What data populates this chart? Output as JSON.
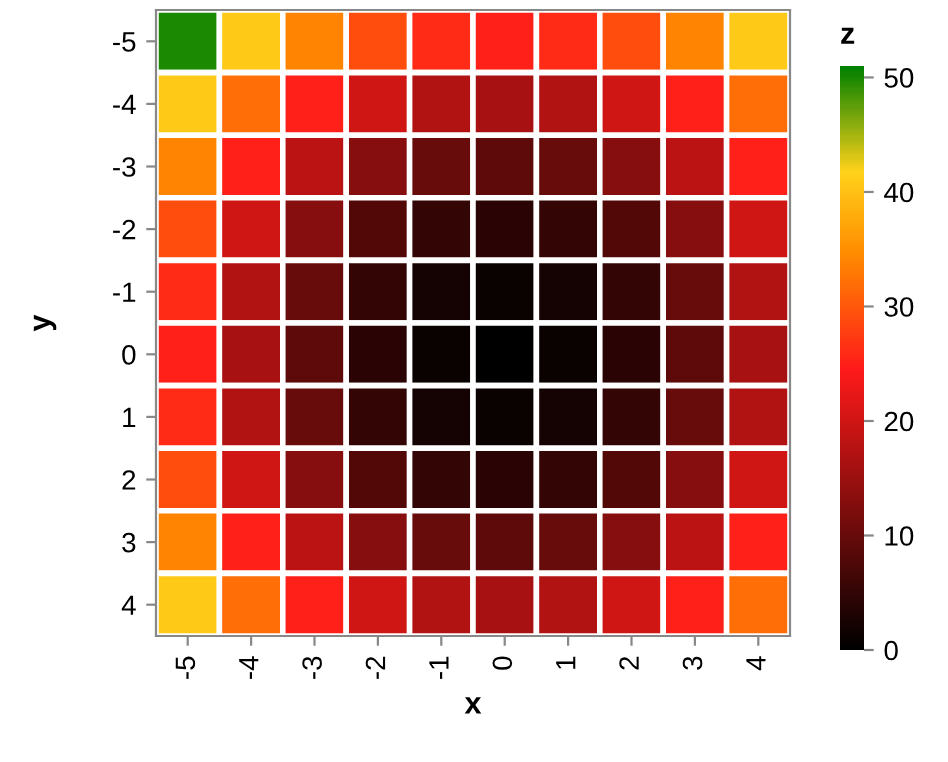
{
  "chart_data": {
    "type": "heatmap",
    "xlabel": "x",
    "ylabel": "y",
    "clabel": "z",
    "categories": [
      "-5",
      "-4",
      "-3",
      "-2",
      "-1",
      "0",
      "1",
      "2",
      "3",
      "4"
    ],
    "y_categories": [
      "-5",
      "-4",
      "-3",
      "-2",
      "-1",
      "0",
      "1",
      "2",
      "3",
      "4"
    ],
    "cells": [
      [
        50,
        41,
        34,
        29,
        26,
        25,
        26,
        29,
        34,
        41
      ],
      [
        41,
        32,
        25,
        20,
        17,
        16,
        17,
        20,
        25,
        32
      ],
      [
        34,
        25,
        18,
        13,
        10,
        9,
        10,
        13,
        18,
        25
      ],
      [
        29,
        20,
        13,
        8,
        5,
        4,
        5,
        8,
        13,
        20
      ],
      [
        26,
        17,
        10,
        5,
        2,
        1,
        2,
        5,
        10,
        17
      ],
      [
        25,
        16,
        9,
        4,
        1,
        0,
        1,
        4,
        9,
        16
      ],
      [
        26,
        17,
        10,
        5,
        2,
        1,
        2,
        5,
        10,
        17
      ],
      [
        29,
        20,
        13,
        8,
        5,
        4,
        5,
        8,
        13,
        20
      ],
      [
        34,
        25,
        18,
        13,
        10,
        9,
        10,
        13,
        18,
        25
      ],
      [
        41,
        32,
        25,
        20,
        17,
        16,
        17,
        20,
        25,
        32
      ]
    ],
    "clim": [
      0,
      51
    ],
    "cticks": [
      0,
      10,
      20,
      30,
      40,
      50
    ]
  }
}
